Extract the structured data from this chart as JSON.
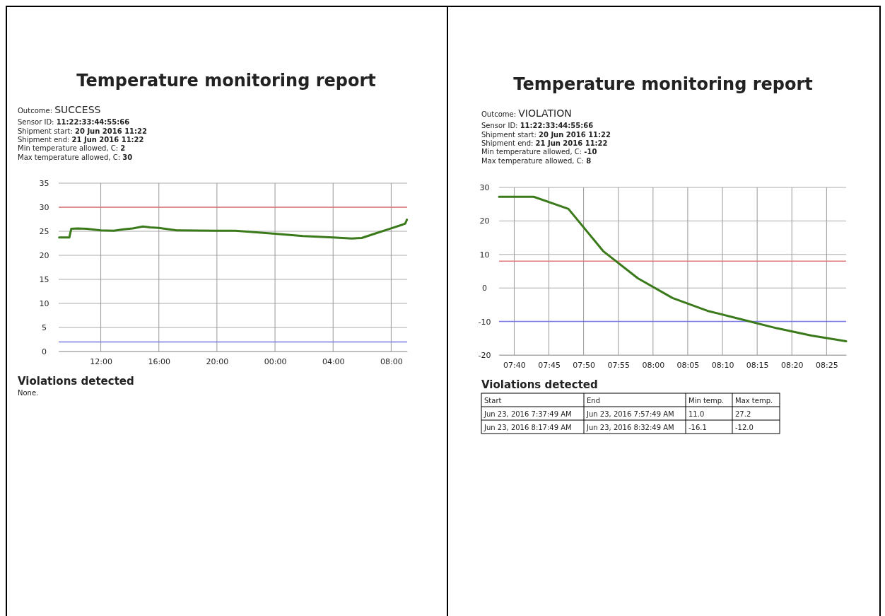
{
  "chart_data": [
    {
      "type": "line",
      "title": "Temperature monitoring report",
      "annotations": [
        "Outcome: SUCCESS",
        "Sensor ID: 11:22:33:44:55:66",
        "Shipment start: 20 Jun 2016 11:22",
        "Shipment end: 21 Jun 2016 11:22",
        "Min temperature allowed, C: 2",
        "Max temperature allowed, C: 30",
        "Violations detected",
        "None."
      ],
      "xlim": [
        "2016-06-20T09:06",
        "2016-06-21T09:06"
      ],
      "xticks": [
        {
          "value": "2016-06-20T12:00",
          "label": "12:00"
        },
        {
          "value": "2016-06-20T16:00",
          "label": "16:00"
        },
        {
          "value": "2016-06-20T20:00",
          "label": "20:00"
        },
        {
          "value": "2016-06-21T00:00",
          "label": "00:00"
        },
        {
          "value": "2016-06-21T04:00",
          "label": "04:00"
        },
        {
          "value": "2016-06-21T08:00",
          "label": "08:00"
        }
      ],
      "ylim": [
        0,
        35
      ],
      "yticks": [
        0,
        5,
        10,
        15,
        20,
        25,
        30,
        35
      ],
      "grid": true,
      "ref_lines": [
        {
          "axis": "y",
          "value": 30,
          "color": "#e07a7a"
        },
        {
          "axis": "y",
          "value": 2,
          "color": "#7a7ae6"
        }
      ],
      "series": [
        {
          "color": "#3a7a1a",
          "x": [
            "2016-06-20T09:08",
            "2016-06-20T09:50",
            "2016-06-20T09:58",
            "2016-06-20T10:23",
            "2016-06-20T11:03",
            "2016-06-20T12:00",
            "2016-06-20T12:54",
            "2016-06-20T13:34",
            "2016-06-20T14:12",
            "2016-06-20T14:54",
            "2016-06-20T15:24",
            "2016-06-20T16:00",
            "2016-06-20T17:14",
            "2016-06-20T20:00",
            "2016-06-20T21:15",
            "2016-06-20T22:15",
            "2016-06-21T00:00",
            "2016-06-21T01:56",
            "2016-06-21T04:00",
            "2016-06-21T05:18",
            "2016-06-21T05:58",
            "2016-06-21T06:58",
            "2016-06-21T08:00",
            "2016-06-21T08:48",
            "2016-06-21T08:58",
            "2016-06-21T09:05"
          ],
          "values": [
            23.7,
            23.7,
            25.5,
            25.6,
            25.5,
            25.2,
            25.1,
            25.4,
            25.6,
            26.0,
            25.8,
            25.7,
            25.2,
            25.1,
            25.1,
            24.9,
            24.5,
            24.0,
            23.7,
            23.5,
            23.6,
            24.6,
            25.6,
            26.4,
            26.6,
            27.4
          ]
        }
      ]
    },
    {
      "type": "line",
      "title": "Temperature monitoring report",
      "annotations": [
        "Outcome: VIOLATION",
        "Sensor ID: 11:22:33:44:55:66",
        "Shipment start: 20 Jun 2016 11:22",
        "Shipment end: 21 Jun 2016 11:22",
        "Min temperature allowed, C: -10",
        "Max temperature allowed, C: 8",
        "Violations detected",
        "Start",
        "End",
        "Min temp.",
        "Max temp.",
        "Jun 23, 2016 7:37:49 AM",
        "Jun 23, 2016 7:57:49 AM",
        "11.0",
        "27.2",
        "Jun 23, 2016 8:17:49 AM",
        "Jun 23, 2016 8:32:49 AM",
        "-16.1",
        "-12.0"
      ],
      "xlim": [
        7.6303,
        8.4636
      ],
      "xticks": [
        {
          "value": 7.6667,
          "label": "07:40"
        },
        {
          "value": 7.75,
          "label": "07:45"
        },
        {
          "value": 7.8333,
          "label": "07:50"
        },
        {
          "value": 7.9167,
          "label": "07:55"
        },
        {
          "value": 8,
          "label": "08:00"
        },
        {
          "value": 8.0833,
          "label": "08:05"
        },
        {
          "value": 8.1667,
          "label": "08:10"
        },
        {
          "value": 8.25,
          "label": "08:15"
        },
        {
          "value": 8.3333,
          "label": "08:20"
        },
        {
          "value": 8.4167,
          "label": "08:25"
        }
      ],
      "ylim": [
        -20,
        30
      ],
      "yticks": [
        -20,
        -10,
        0,
        10,
        20,
        30
      ],
      "grid": true,
      "ref_lines": [
        {
          "axis": "y",
          "value": 8,
          "color": "#e07a7a"
        },
        {
          "axis": "y",
          "value": -10,
          "color": "#7a7ae6"
        }
      ],
      "series": [
        {
          "color": "#3a7a1a",
          "x": [
            7.6303,
            7.7136,
            7.7969,
            7.8803,
            7.9636,
            8.0469,
            8.1303,
            8.2136,
            8.2969,
            8.3803,
            8.4636
          ],
          "values": [
            27.2,
            27.2,
            23.6,
            11.0,
            2.9,
            -3.0,
            -6.8,
            -9.4,
            -12.0,
            -14.2,
            -15.9
          ]
        }
      ]
    }
  ]
}
